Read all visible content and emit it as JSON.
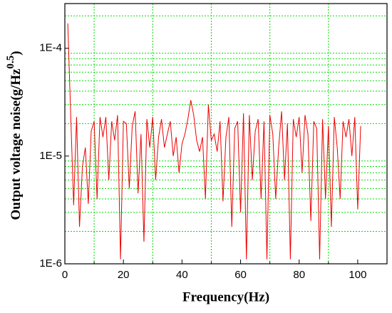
{
  "chart_data": {
    "type": "line",
    "xlabel": "Frequency(Hz)",
    "ylabel": [
      "Output voltage noise(g/Hz",
      "0.5",
      ")"
    ],
    "log_y": true,
    "grid": true,
    "grid_color": "#00dd00",
    "xlim": [
      0,
      110
    ],
    "xticks": [
      0,
      20,
      40,
      60,
      80,
      100
    ],
    "x_minor_ticks": [
      10,
      30,
      50,
      70,
      90
    ],
    "ylim": [
      1e-06,
      0.00026
    ],
    "yticks": [
      {
        "value": 1e-06,
        "label": "1E-6"
      },
      {
        "value": 1e-05,
        "label": "1E-5"
      },
      {
        "value": 0.0001,
        "label": "1E-4"
      }
    ],
    "x": [
      1,
      2,
      3,
      4,
      5,
      6,
      7,
      8,
      9,
      10,
      11,
      12,
      13,
      14,
      15,
      16,
      17,
      18,
      19,
      20,
      21,
      22,
      23,
      24,
      25,
      26,
      27,
      28,
      29,
      30,
      31,
      32,
      33,
      34,
      35,
      36,
      37,
      38,
      39,
      40,
      41,
      42,
      43,
      44,
      45,
      46,
      47,
      48,
      49,
      50,
      51,
      52,
      53,
      54,
      55,
      56,
      57,
      58,
      59,
      60,
      61,
      62,
      63,
      64,
      65,
      66,
      67,
      68,
      69,
      70,
      71,
      72,
      73,
      74,
      75,
      76,
      77,
      78,
      79,
      80,
      81,
      82,
      83,
      84,
      85,
      86,
      87,
      88,
      89,
      90,
      91,
      92,
      93,
      94,
      95,
      96,
      97,
      98,
      99,
      100,
      101
    ],
    "series": [
      {
        "color": "#ee0000",
        "values": [
          0.00017,
          2.4e-05,
          3.5e-06,
          2.3e-05,
          2.2e-06,
          8e-06,
          1.2e-05,
          3.6e-06,
          1.7e-05,
          2.1e-05,
          4e-06,
          2.3e-05,
          1.5e-05,
          2.3e-05,
          6e-06,
          2.1e-05,
          1.4e-05,
          2.4e-05,
          1.1e-06,
          2.1e-05,
          2e-05,
          5e-06,
          1.9e-05,
          2.6e-05,
          4.5e-06,
          1.6e-05,
          1.6e-06,
          2.2e-05,
          1.2e-05,
          2.3e-05,
          6e-06,
          1.5e-05,
          2.2e-05,
          1.2e-05,
          1.6e-05,
          2.1e-05,
          1e-05,
          1.5e-05,
          7e-06,
          1.3e-05,
          1.6e-05,
          2.2e-05,
          3.3e-05,
          2.4e-05,
          1.4e-05,
          1.1e-05,
          1.5e-05,
          4e-06,
          3e-05,
          1.4e-05,
          1.6e-05,
          1.1e-05,
          2.1e-05,
          3.8e-06,
          1.5e-05,
          2.3e-05,
          2.2e-06,
          1.8e-05,
          2.1e-05,
          3e-06,
          2.5e-05,
          1.1e-06,
          2.4e-05,
          6e-06,
          1.7e-05,
          2.2e-05,
          4e-06,
          2.1e-05,
          1.1e-06,
          2.4e-05,
          1.6e-05,
          4e-06,
          1.2e-05,
          2.6e-05,
          6e-06,
          2e-05,
          1.1e-06,
          2.2e-05,
          1.5e-05,
          2.3e-05,
          7e-06,
          2.4e-05,
          1.6e-05,
          2.5e-06,
          2.1e-05,
          1.8e-05,
          1.1e-06,
          2.2e-05,
          4e-06,
          1.9e-05,
          2.2e-06,
          2.3e-05,
          1.2e-05,
          4e-06,
          2.1e-05,
          1.5e-05,
          2.2e-05,
          1e-05,
          2.3e-05,
          3.2e-06,
          1.9e-05
        ]
      }
    ]
  }
}
